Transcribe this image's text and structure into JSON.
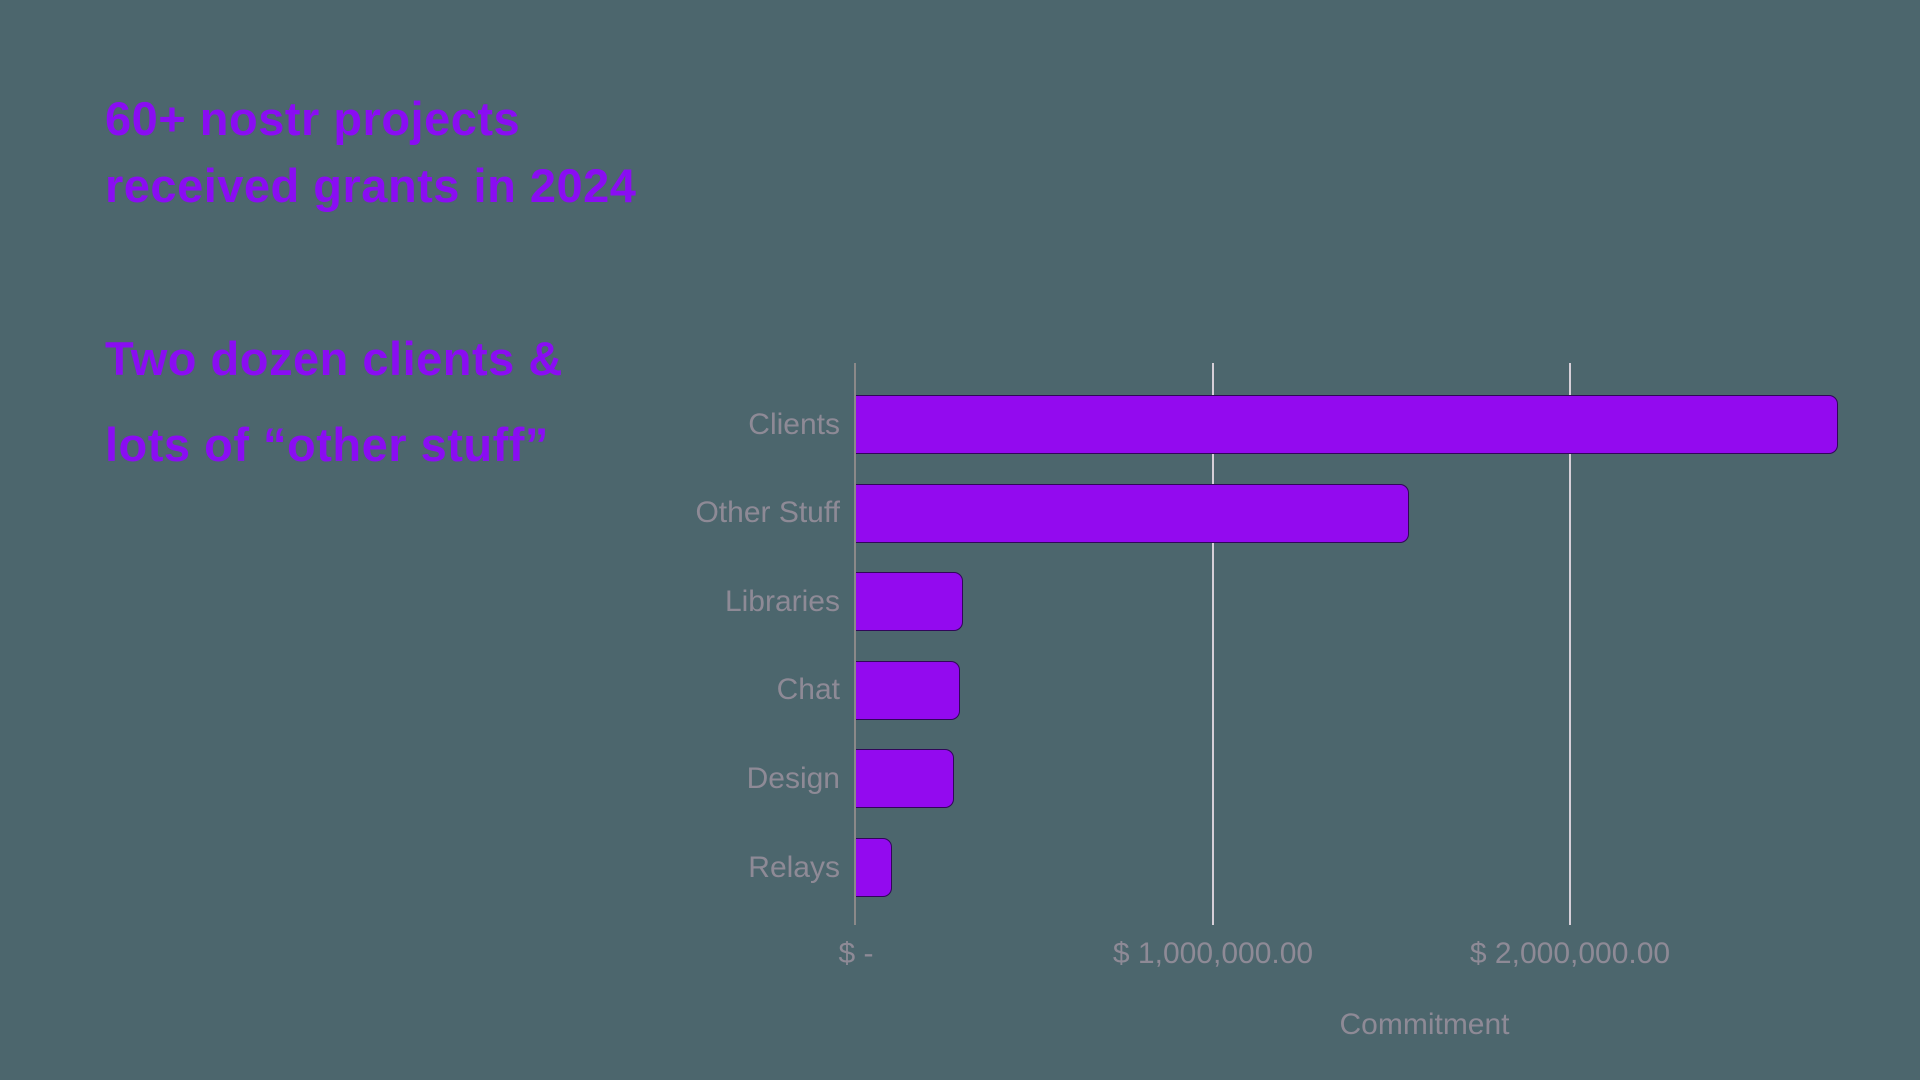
{
  "page": {
    "background_color": "#4c666d"
  },
  "heading": {
    "line1": "60+ nostr projects",
    "line2": "received grants in 2024",
    "color": "#8a0df2"
  },
  "subheading": {
    "line1": "Two dozen clients &",
    "line2": "lots of “other stuff”",
    "color": "#8a0df2"
  },
  "chart_data": {
    "type": "bar",
    "orientation": "horizontal",
    "categories": [
      "Clients",
      "Other Stuff",
      "Libraries",
      "Chat",
      "Design",
      "Relays"
    ],
    "values": [
      2750000,
      1550000,
      300000,
      290000,
      275000,
      100000
    ],
    "unit": "USD",
    "xlabel": "Commitment",
    "ylabel": "",
    "title": "",
    "x_ticks": [
      {
        "value": 0,
        "label": "$ -"
      },
      {
        "value": 1000000,
        "label": "$ 1,000,000.00"
      },
      {
        "value": 2000000,
        "label": "$ 2,000,000.00"
      }
    ],
    "xlim": [
      0,
      2980000
    ],
    "grid": "vertical gridlines at x ticks, drawn behind bars",
    "legend": "none",
    "bar_color": "#930aef",
    "bar_edge_color": "#31065a",
    "gridline_color": "#d6cfd8",
    "axis_line_color": "#8b8989",
    "label_color": "#8e8a96"
  }
}
